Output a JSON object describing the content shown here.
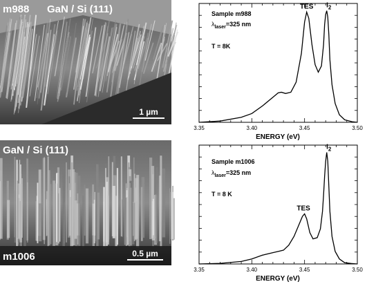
{
  "sem": [
    {
      "sample_label": "m988",
      "material_label": "GaN / Si (111)",
      "scale_bar_label": "1 µm",
      "scale_bar_value_um": 1
    },
    {
      "sample_label": "m1006",
      "material_label": "GaN / Si (111)",
      "scale_bar_label": "0.5 µm",
      "scale_bar_value_um": 0.5
    }
  ],
  "chart_data": [
    {
      "type": "line",
      "xlabel": "ENERGY (eV)",
      "x_ticks": [
        "3.35",
        "3.40",
        "3.45",
        "3.50"
      ],
      "xlim": [
        3.35,
        3.5
      ],
      "ylim": [
        0,
        1
      ],
      "info": {
        "sample": "Sample m988",
        "laser_prefix": "λ",
        "laser_sub": "laser",
        "laser_value": "=325 nm",
        "temperature": "T = 8K"
      },
      "peaks": [
        {
          "label": "TES",
          "main": "TES",
          "sub": "",
          "x": 3.452,
          "y": 0.88
        },
        {
          "label": "I2",
          "main": "I",
          "sub": "2",
          "x": 3.471,
          "y": 0.89
        }
      ],
      "series": [
        {
          "x": [
            3.35,
            3.37,
            3.39,
            3.4,
            3.41,
            3.42,
            3.425,
            3.428,
            3.432,
            3.437,
            3.442,
            3.447,
            3.45,
            3.452,
            3.454,
            3.457,
            3.46,
            3.463,
            3.466,
            3.468,
            3.469,
            3.47,
            3.471,
            3.472,
            3.473,
            3.474,
            3.476,
            3.479,
            3.483,
            3.488,
            3.495,
            3.5
          ],
          "y": [
            0.0,
            0.01,
            0.04,
            0.07,
            0.13,
            0.2,
            0.235,
            0.24,
            0.23,
            0.24,
            0.32,
            0.55,
            0.8,
            0.88,
            0.83,
            0.62,
            0.46,
            0.4,
            0.45,
            0.62,
            0.78,
            0.86,
            0.89,
            0.84,
            0.7,
            0.5,
            0.3,
            0.15,
            0.06,
            0.02,
            0.005,
            0.0
          ]
        }
      ]
    },
    {
      "type": "line",
      "xlabel": "ENERGY (eV)",
      "x_ticks": [
        "3.35",
        "3.40",
        "3.45",
        "3.50"
      ],
      "xlim": [
        3.35,
        3.5
      ],
      "ylim": [
        0,
        1
      ],
      "info": {
        "sample": "Sample m1006",
        "laser_prefix": "λ",
        "laser_sub": "laser",
        "laser_value": "=325 nm",
        "temperature": "T = 8 K"
      },
      "peaks": [
        {
          "label": "TES",
          "main": "TES",
          "sub": "",
          "x": 3.449,
          "y": 0.4
        },
        {
          "label": "I2",
          "main": "I",
          "sub": "2",
          "x": 3.471,
          "y": 0.89
        }
      ],
      "series": [
        {
          "x": [
            3.35,
            3.37,
            3.39,
            3.4,
            3.41,
            3.42,
            3.425,
            3.43,
            3.435,
            3.44,
            3.445,
            3.448,
            3.45,
            3.452,
            3.455,
            3.458,
            3.462,
            3.465,
            3.467,
            3.468,
            3.469,
            3.47,
            3.471,
            3.472,
            3.473,
            3.474,
            3.476,
            3.479,
            3.483,
            3.488,
            3.495,
            3.5
          ],
          "y": [
            0.0,
            0.005,
            0.02,
            0.04,
            0.07,
            0.09,
            0.1,
            0.11,
            0.15,
            0.22,
            0.32,
            0.38,
            0.4,
            0.36,
            0.25,
            0.2,
            0.21,
            0.28,
            0.42,
            0.55,
            0.7,
            0.82,
            0.89,
            0.82,
            0.62,
            0.42,
            0.22,
            0.1,
            0.04,
            0.01,
            0.003,
            0.0
          ]
        }
      ]
    }
  ]
}
